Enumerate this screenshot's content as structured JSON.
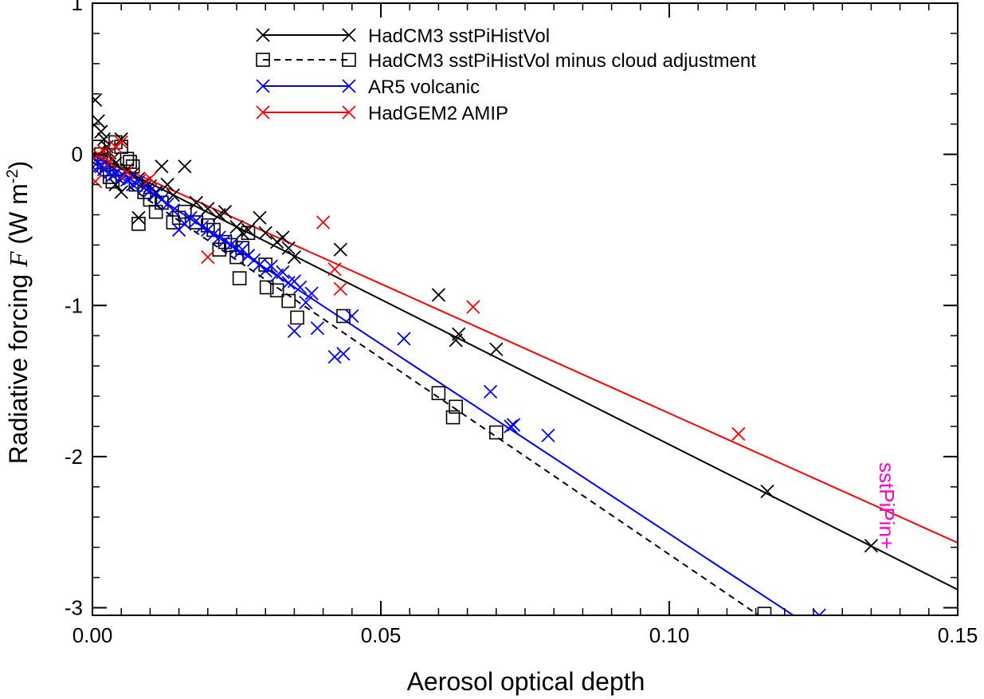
{
  "chart_data": {
    "type": "scatter",
    "xlabel": "Aerosol optical depth",
    "ylabel_main": "Radiative forcing ",
    "ylabel_sym": "F",
    "ylabel_unit_open": " (W m",
    "ylabel_unit_exp": "-2",
    "ylabel_unit_close": ")",
    "xlim": [
      0.0,
      0.15
    ],
    "ylim": [
      -3.05,
      1.0
    ],
    "xticks": [
      0.0,
      0.05,
      0.1,
      0.15
    ],
    "xtick_labels": [
      "0.00",
      "0.05",
      "0.10",
      "0.15"
    ],
    "yticks": [
      -3,
      -2,
      -1,
      0,
      1
    ],
    "ytick_labels": [
      "-3",
      "-2",
      "-1",
      "0",
      "1"
    ],
    "legend_position": "top",
    "annotation": {
      "text": "sstPiPin+",
      "color": "#ff00cc",
      "x": 0.138,
      "y": -2.3
    },
    "series": [
      {
        "name": "HadCM3 sstPiHistVol",
        "color": "#000000",
        "marker": "x",
        "line": "solid",
        "fit": [
          [
            0.0,
            0.0
          ],
          [
            0.15,
            -2.88
          ]
        ],
        "points": [
          [
            0.0005,
            0.36
          ],
          [
            0.001,
            0.22
          ],
          [
            0.0015,
            0.15
          ],
          [
            0.002,
            0.1
          ],
          [
            0.0025,
            0.05
          ],
          [
            0.003,
            0.01
          ],
          [
            0.0035,
            -0.03
          ],
          [
            0.004,
            -0.06
          ],
          [
            0.005,
            0.1
          ],
          [
            0.006,
            -0.1
          ],
          [
            0.007,
            -0.13
          ],
          [
            0.008,
            -0.16
          ],
          [
            0.009,
            -0.19
          ],
          [
            0.01,
            -0.21
          ],
          [
            0.011,
            -0.25
          ],
          [
            0.012,
            -0.08
          ],
          [
            0.013,
            -0.2
          ],
          [
            0.014,
            -0.27
          ],
          [
            0.016,
            -0.08
          ],
          [
            0.018,
            -0.32
          ],
          [
            0.02,
            -0.36
          ],
          [
            0.022,
            -0.4
          ],
          [
            0.023,
            -0.38
          ],
          [
            0.025,
            -0.48
          ],
          [
            0.026,
            -0.52
          ],
          [
            0.027,
            -0.5
          ],
          [
            0.029,
            -0.42
          ],
          [
            0.03,
            -0.52
          ],
          [
            0.032,
            -0.58
          ],
          [
            0.033,
            -0.55
          ],
          [
            0.034,
            -0.62
          ],
          [
            0.035,
            -0.68
          ],
          [
            0.004,
            -0.2
          ],
          [
            0.005,
            -0.25
          ],
          [
            0.008,
            -0.42
          ],
          [
            0.043,
            -0.63
          ],
          [
            0.06,
            -0.93
          ],
          [
            0.063,
            -1.23
          ],
          [
            0.0635,
            -1.19
          ],
          [
            0.07,
            -1.29
          ],
          [
            0.117,
            -2.23
          ],
          [
            0.135,
            -2.59
          ]
        ]
      },
      {
        "name": "HadCM3 sstPiHistVol minus cloud adjustment",
        "color": "#000000",
        "marker": "square",
        "line": "dashed",
        "fit": [
          [
            0.0,
            -0.05
          ],
          [
            0.1155,
            -3.05
          ]
        ],
        "points": [
          [
            0.001,
            0.05
          ],
          [
            0.0015,
            0.0
          ],
          [
            0.002,
            -0.05
          ],
          [
            0.0025,
            -0.1
          ],
          [
            0.003,
            -0.15
          ],
          [
            0.0035,
            -0.18
          ],
          [
            0.004,
            0.08
          ],
          [
            0.005,
            0.05
          ],
          [
            0.006,
            -0.03
          ],
          [
            0.0065,
            -0.05
          ],
          [
            0.007,
            -0.08
          ],
          [
            0.0075,
            -0.2
          ],
          [
            0.008,
            -0.46
          ],
          [
            0.009,
            -0.25
          ],
          [
            0.01,
            -0.3
          ],
          [
            0.011,
            -0.38
          ],
          [
            0.012,
            -0.32
          ],
          [
            0.014,
            -0.45
          ],
          [
            0.015,
            -0.42
          ],
          [
            0.016,
            -0.38
          ],
          [
            0.018,
            -0.45
          ],
          [
            0.02,
            -0.47
          ],
          [
            0.021,
            -0.5
          ],
          [
            0.022,
            -0.63
          ],
          [
            0.023,
            -0.58
          ],
          [
            0.024,
            -0.6
          ],
          [
            0.025,
            -0.68
          ],
          [
            0.0255,
            -0.82
          ],
          [
            0.026,
            -0.62
          ],
          [
            0.027,
            -0.52
          ],
          [
            0.03,
            -0.73
          ],
          [
            0.0302,
            -0.88
          ],
          [
            0.032,
            -0.9
          ],
          [
            0.034,
            -0.97
          ],
          [
            0.0355,
            -1.08
          ],
          [
            0.0435,
            -1.07
          ],
          [
            0.06,
            -1.58
          ],
          [
            0.0625,
            -1.74
          ],
          [
            0.063,
            -1.67
          ],
          [
            0.07,
            -1.84
          ],
          [
            0.1165,
            -3.04
          ]
        ]
      },
      {
        "name": "AR5 volcanic",
        "color": "#0000ff",
        "marker": "x",
        "line": "solid",
        "fit": [
          [
            0.0,
            0.0
          ],
          [
            0.1215,
            -3.05
          ]
        ],
        "points": [
          [
            0.0005,
            -0.1
          ],
          [
            0.001,
            -0.05
          ],
          [
            0.0015,
            -0.08
          ],
          [
            0.002,
            -0.1
          ],
          [
            0.0025,
            -0.07
          ],
          [
            0.003,
            -0.12
          ],
          [
            0.0035,
            -0.14
          ],
          [
            0.004,
            -0.13
          ],
          [
            0.005,
            -0.15
          ],
          [
            0.006,
            -0.17
          ],
          [
            0.0065,
            -0.16
          ],
          [
            0.007,
            -0.2
          ],
          [
            0.008,
            -0.18
          ],
          [
            0.009,
            -0.22
          ],
          [
            0.01,
            -0.24
          ],
          [
            0.011,
            -0.26
          ],
          [
            0.012,
            -0.3
          ],
          [
            0.013,
            -0.33
          ],
          [
            0.014,
            -0.37
          ],
          [
            0.015,
            -0.5
          ],
          [
            0.016,
            -0.46
          ],
          [
            0.017,
            -0.42
          ],
          [
            0.018,
            -0.44
          ],
          [
            0.019,
            -0.48
          ],
          [
            0.02,
            -0.5
          ],
          [
            0.021,
            -0.53
          ],
          [
            0.022,
            -0.55
          ],
          [
            0.023,
            -0.57
          ],
          [
            0.024,
            -0.6
          ],
          [
            0.025,
            -0.62
          ],
          [
            0.0255,
            -0.65
          ],
          [
            0.026,
            -0.63
          ],
          [
            0.027,
            -0.67
          ],
          [
            0.028,
            -0.7
          ],
          [
            0.029,
            -0.73
          ],
          [
            0.03,
            -0.77
          ],
          [
            0.031,
            -0.74
          ],
          [
            0.032,
            -0.8
          ],
          [
            0.033,
            -0.78
          ],
          [
            0.034,
            -0.85
          ],
          [
            0.035,
            -0.84
          ],
          [
            0.036,
            -0.88
          ],
          [
            0.035,
            -1.17
          ],
          [
            0.037,
            -0.98
          ],
          [
            0.038,
            -0.92
          ],
          [
            0.039,
            -1.15
          ],
          [
            0.042,
            -1.34
          ],
          [
            0.0435,
            -1.32
          ],
          [
            0.045,
            -1.07
          ],
          [
            0.054,
            -1.22
          ],
          [
            0.069,
            -1.57
          ],
          [
            0.0725,
            -1.8
          ],
          [
            0.073,
            -1.79
          ],
          [
            0.079,
            -1.86
          ],
          [
            0.126,
            -3.05
          ]
        ]
      },
      {
        "name": "HadGEM2 AMIP",
        "color": "#ff0000",
        "marker": "x",
        "line": "solid",
        "fit": [
          [
            0.0,
            0.0
          ],
          [
            0.15,
            -2.57
          ]
        ],
        "points": [
          [
            0.0005,
            -0.18
          ],
          [
            0.001,
            0.0
          ],
          [
            0.002,
            0.02
          ],
          [
            0.003,
            -0.05
          ],
          [
            0.004,
            0.05
          ],
          [
            0.005,
            0.08
          ],
          [
            0.006,
            -0.12
          ],
          [
            0.01,
            -0.16
          ],
          [
            0.02,
            -0.68
          ],
          [
            0.04,
            -0.45
          ],
          [
            0.042,
            -0.76
          ],
          [
            0.043,
            -0.89
          ],
          [
            0.066,
            -1.01
          ],
          [
            0.112,
            -1.85
          ]
        ]
      }
    ]
  }
}
